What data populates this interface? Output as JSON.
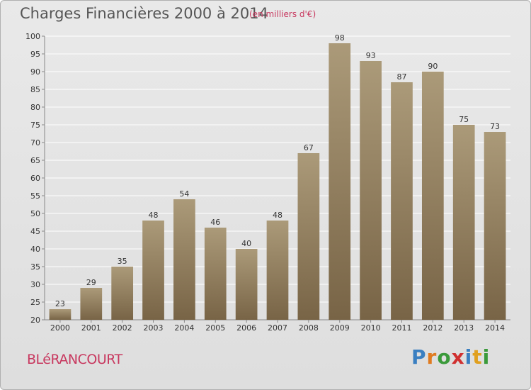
{
  "header": {
    "title": "Charges Financières 2000 à 2014",
    "subtitle": "(en milliers d'€)"
  },
  "footer": {
    "city": "BLéRANCOURT",
    "logo": {
      "text": "Proxiti",
      "letters": [
        {
          "ch": "P",
          "color": "#3a7fc1"
        },
        {
          "ch": "r",
          "color": "#e07b20"
        },
        {
          "ch": "o",
          "color": "#3a9a3a"
        },
        {
          "ch": "x",
          "color": "#d03030"
        },
        {
          "ch": "i",
          "color": "#3a7fc1"
        },
        {
          "ch": "t",
          "color": "#e0a020"
        },
        {
          "ch": "i",
          "color": "#3a9a3a"
        }
      ]
    }
  },
  "colors": {
    "bar_top": "#ab9a79",
    "bar_bottom": "#786446",
    "grid": "#ffffff",
    "accent": "#c8385f"
  },
  "chart_data": {
    "type": "bar",
    "title": "Charges Financières 2000 à 2014",
    "subtitle": "(en milliers d'€)",
    "categories": [
      "2000",
      "2001",
      "2002",
      "2003",
      "2004",
      "2005",
      "2006",
      "2007",
      "2008",
      "2009",
      "2010",
      "2011",
      "2012",
      "2013",
      "2014"
    ],
    "values": [
      23,
      29,
      35,
      48,
      54,
      46,
      40,
      48,
      67,
      98,
      93,
      87,
      90,
      75,
      73
    ],
    "ylim": [
      20,
      100
    ],
    "yticks": [
      20,
      25,
      30,
      35,
      40,
      45,
      50,
      55,
      60,
      65,
      70,
      75,
      80,
      85,
      90,
      95,
      100
    ],
    "grid": true,
    "xlabel": "",
    "ylabel": ""
  }
}
